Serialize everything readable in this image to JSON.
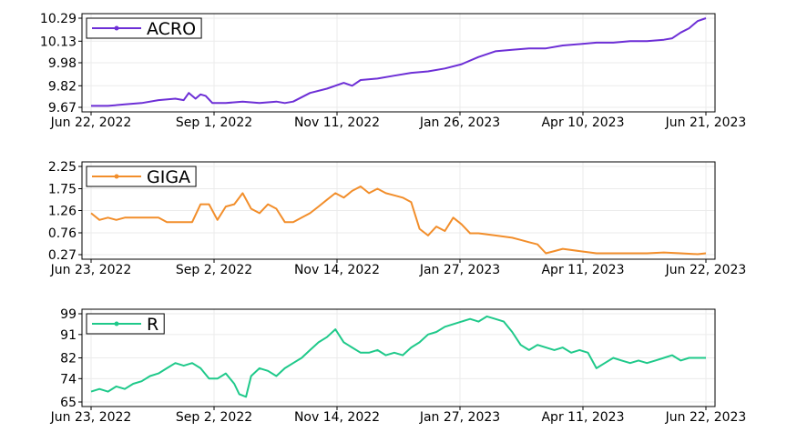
{
  "chart_data": [
    {
      "type": "line",
      "series": [
        {
          "name": "ACRO",
          "color": "#6d2fd6"
        }
      ],
      "xticks": [
        "Jun 22, 2022",
        "Sep 1, 2022",
        "Nov 11, 2022",
        "Jan 26, 2023",
        "Apr 10, 2023",
        "Jun 21, 2023"
      ],
      "yticks": [
        "9.67",
        "9.82",
        "9.98",
        "10.13",
        "10.29"
      ],
      "ylim": [
        9.67,
        10.29
      ],
      "points": [
        [
          0,
          9.68
        ],
        [
          10,
          9.68
        ],
        [
          20,
          9.69
        ],
        [
          30,
          9.7
        ],
        [
          40,
          9.72
        ],
        [
          50,
          9.73
        ],
        [
          55,
          9.72
        ],
        [
          58,
          9.77
        ],
        [
          62,
          9.73
        ],
        [
          65,
          9.76
        ],
        [
          68,
          9.75
        ],
        [
          72,
          9.7
        ],
        [
          80,
          9.7
        ],
        [
          90,
          9.71
        ],
        [
          100,
          9.7
        ],
        [
          110,
          9.71
        ],
        [
          115,
          9.7
        ],
        [
          120,
          9.71
        ],
        [
          130,
          9.77
        ],
        [
          140,
          9.8
        ],
        [
          150,
          9.84
        ],
        [
          155,
          9.82
        ],
        [
          160,
          9.86
        ],
        [
          170,
          9.87
        ],
        [
          180,
          9.89
        ],
        [
          190,
          9.91
        ],
        [
          200,
          9.92
        ],
        [
          210,
          9.94
        ],
        [
          220,
          9.97
        ],
        [
          230,
          10.02
        ],
        [
          240,
          10.06
        ],
        [
          250,
          10.07
        ],
        [
          260,
          10.08
        ],
        [
          270,
          10.08
        ],
        [
          280,
          10.1
        ],
        [
          290,
          10.11
        ],
        [
          300,
          10.12
        ],
        [
          310,
          10.12
        ],
        [
          320,
          10.13
        ],
        [
          330,
          10.13
        ],
        [
          340,
          10.14
        ],
        [
          345,
          10.15
        ],
        [
          350,
          10.19
        ],
        [
          355,
          10.22
        ],
        [
          360,
          10.27
        ],
        [
          365,
          10.29
        ]
      ]
    },
    {
      "type": "line",
      "series": [
        {
          "name": "GIGA",
          "color": "#f28e2b"
        }
      ],
      "xticks": [
        "Jun 23, 2022",
        "Sep 2, 2022",
        "Nov 14, 2022",
        "Jan 27, 2023",
        "Apr 11, 2023",
        "Jun 22, 2023"
      ],
      "yticks": [
        "0.27",
        "0.76",
        "1.26",
        "1.75",
        "2.25"
      ],
      "ylim": [
        0.27,
        2.25
      ],
      "points": [
        [
          0,
          1.2
        ],
        [
          5,
          1.05
        ],
        [
          10,
          1.1
        ],
        [
          15,
          1.05
        ],
        [
          20,
          1.1
        ],
        [
          30,
          1.1
        ],
        [
          40,
          1.1
        ],
        [
          45,
          1.0
        ],
        [
          55,
          1.0
        ],
        [
          60,
          1.0
        ],
        [
          65,
          1.4
        ],
        [
          70,
          1.4
        ],
        [
          75,
          1.05
        ],
        [
          80,
          1.35
        ],
        [
          85,
          1.4
        ],
        [
          90,
          1.65
        ],
        [
          95,
          1.3
        ],
        [
          100,
          1.2
        ],
        [
          105,
          1.4
        ],
        [
          110,
          1.3
        ],
        [
          115,
          1.0
        ],
        [
          120,
          1.0
        ],
        [
          125,
          1.1
        ],
        [
          130,
          1.2
        ],
        [
          135,
          1.35
        ],
        [
          140,
          1.5
        ],
        [
          145,
          1.65
        ],
        [
          150,
          1.55
        ],
        [
          155,
          1.7
        ],
        [
          160,
          1.8
        ],
        [
          165,
          1.65
        ],
        [
          170,
          1.75
        ],
        [
          175,
          1.65
        ],
        [
          180,
          1.6
        ],
        [
          185,
          1.55
        ],
        [
          190,
          1.45
        ],
        [
          195,
          0.85
        ],
        [
          200,
          0.7
        ],
        [
          205,
          0.9
        ],
        [
          210,
          0.8
        ],
        [
          215,
          1.1
        ],
        [
          220,
          0.95
        ],
        [
          225,
          0.75
        ],
        [
          230,
          0.75
        ],
        [
          240,
          0.7
        ],
        [
          250,
          0.65
        ],
        [
          255,
          0.6
        ],
        [
          260,
          0.55
        ],
        [
          265,
          0.5
        ],
        [
          270,
          0.3
        ],
        [
          275,
          0.35
        ],
        [
          280,
          0.4
        ],
        [
          290,
          0.35
        ],
        [
          300,
          0.3
        ],
        [
          310,
          0.3
        ],
        [
          320,
          0.3
        ],
        [
          330,
          0.3
        ],
        [
          340,
          0.32
        ],
        [
          350,
          0.3
        ],
        [
          360,
          0.28
        ],
        [
          365,
          0.3
        ]
      ]
    },
    {
      "type": "line",
      "series": [
        {
          "name": "R",
          "color": "#1fc98a"
        }
      ],
      "xticks": [
        "Jun 23, 2022",
        "Sep 2, 2022",
        "Nov 14, 2022",
        "Jan 27, 2023",
        "Apr 11, 2023",
        "Jun 22, 2023"
      ],
      "yticks": [
        "65",
        "74",
        "82",
        "91",
        "99"
      ],
      "ylim": [
        65,
        99
      ],
      "points": [
        [
          0,
          69
        ],
        [
          5,
          70
        ],
        [
          10,
          69
        ],
        [
          15,
          71
        ],
        [
          20,
          70
        ],
        [
          25,
          72
        ],
        [
          30,
          73
        ],
        [
          35,
          75
        ],
        [
          40,
          76
        ],
        [
          45,
          78
        ],
        [
          50,
          80
        ],
        [
          55,
          79
        ],
        [
          60,
          80
        ],
        [
          65,
          78
        ],
        [
          70,
          74
        ],
        [
          75,
          74
        ],
        [
          80,
          76
        ],
        [
          85,
          72
        ],
        [
          88,
          68
        ],
        [
          92,
          67
        ],
        [
          95,
          75
        ],
        [
          100,
          78
        ],
        [
          105,
          77
        ],
        [
          110,
          75
        ],
        [
          115,
          78
        ],
        [
          120,
          80
        ],
        [
          125,
          82
        ],
        [
          130,
          85
        ],
        [
          135,
          88
        ],
        [
          140,
          90
        ],
        [
          145,
          93
        ],
        [
          150,
          88
        ],
        [
          155,
          86
        ],
        [
          160,
          84
        ],
        [
          165,
          84
        ],
        [
          170,
          85
        ],
        [
          175,
          83
        ],
        [
          180,
          84
        ],
        [
          185,
          83
        ],
        [
          190,
          86
        ],
        [
          195,
          88
        ],
        [
          200,
          91
        ],
        [
          205,
          92
        ],
        [
          210,
          94
        ],
        [
          215,
          95
        ],
        [
          220,
          96
        ],
        [
          225,
          97
        ],
        [
          230,
          96
        ],
        [
          235,
          98
        ],
        [
          240,
          97
        ],
        [
          245,
          96
        ],
        [
          250,
          92
        ],
        [
          255,
          87
        ],
        [
          260,
          85
        ],
        [
          265,
          87
        ],
        [
          270,
          86
        ],
        [
          275,
          85
        ],
        [
          280,
          86
        ],
        [
          285,
          84
        ],
        [
          290,
          85
        ],
        [
          295,
          84
        ],
        [
          300,
          78
        ],
        [
          305,
          80
        ],
        [
          310,
          82
        ],
        [
          315,
          81
        ],
        [
          320,
          80
        ],
        [
          325,
          81
        ],
        [
          330,
          80
        ],
        [
          335,
          81
        ],
        [
          340,
          82
        ],
        [
          345,
          83
        ],
        [
          350,
          81
        ],
        [
          355,
          82
        ],
        [
          360,
          82
        ],
        [
          365,
          82
        ]
      ]
    }
  ]
}
